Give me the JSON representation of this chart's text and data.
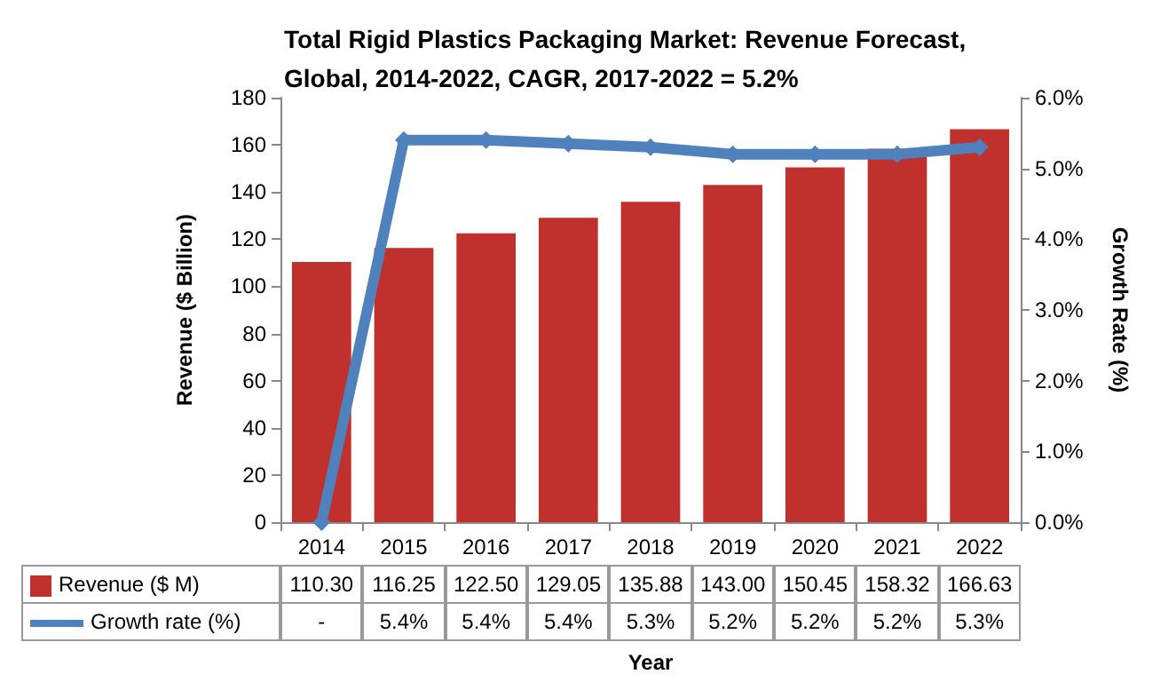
{
  "chart_data": {
    "type": "bar",
    "title": "Total Rigid Plastics Packaging Market: Revenue Forecast, Global, 2014-2022, CAGR, 2017-2022 = 5.2%",
    "xlabel": "Year",
    "ylabel": "Revenue ($ Billion)",
    "y2label": "Growth Rate (%)",
    "categories": [
      "2014",
      "2015",
      "2016",
      "2017",
      "2018",
      "2019",
      "2020",
      "2021",
      "2022"
    ],
    "series": [
      {
        "name": "Revenue ($ M)",
        "color": "#c0302c",
        "values": [
          110.3,
          116.25,
          122.5,
          129.05,
          135.88,
          143.0,
          150.45,
          158.32,
          166.63
        ],
        "value_labels": [
          "110.30",
          "116.25",
          "122.50",
          "129.05",
          "135.88",
          "143.00",
          "150.45",
          "158.32",
          "166.63"
        ]
      },
      {
        "name": "Growth rate (%)",
        "type": "line",
        "axis": "y2",
        "color": "#4f81bd",
        "marker": "diamond",
        "values": [
          0,
          5.4,
          5.4,
          5.35,
          5.3,
          5.2,
          5.2,
          5.2,
          5.3
        ],
        "value_labels": [
          "-",
          "5.4%",
          "5.4%",
          "5.4%",
          "5.3%",
          "5.2%",
          "5.2%",
          "5.2%",
          "5.3%"
        ]
      }
    ],
    "ylim": [
      0,
      180
    ],
    "yticks": [
      0,
      20,
      40,
      60,
      80,
      100,
      120,
      140,
      160,
      180
    ],
    "y2lim": [
      0,
      6
    ],
    "y2ticks": [
      {
        "value": 0,
        "label": "0.0%"
      },
      {
        "value": 1,
        "label": "1.0%"
      },
      {
        "value": 2,
        "label": "2.0%"
      },
      {
        "value": 3,
        "label": "3.0%"
      },
      {
        "value": 4,
        "label": "4.0%"
      },
      {
        "value": 5,
        "label": "5.0%"
      },
      {
        "value": 6,
        "label": "6.0%"
      }
    ],
    "grid": false,
    "legend": "bottom"
  }
}
